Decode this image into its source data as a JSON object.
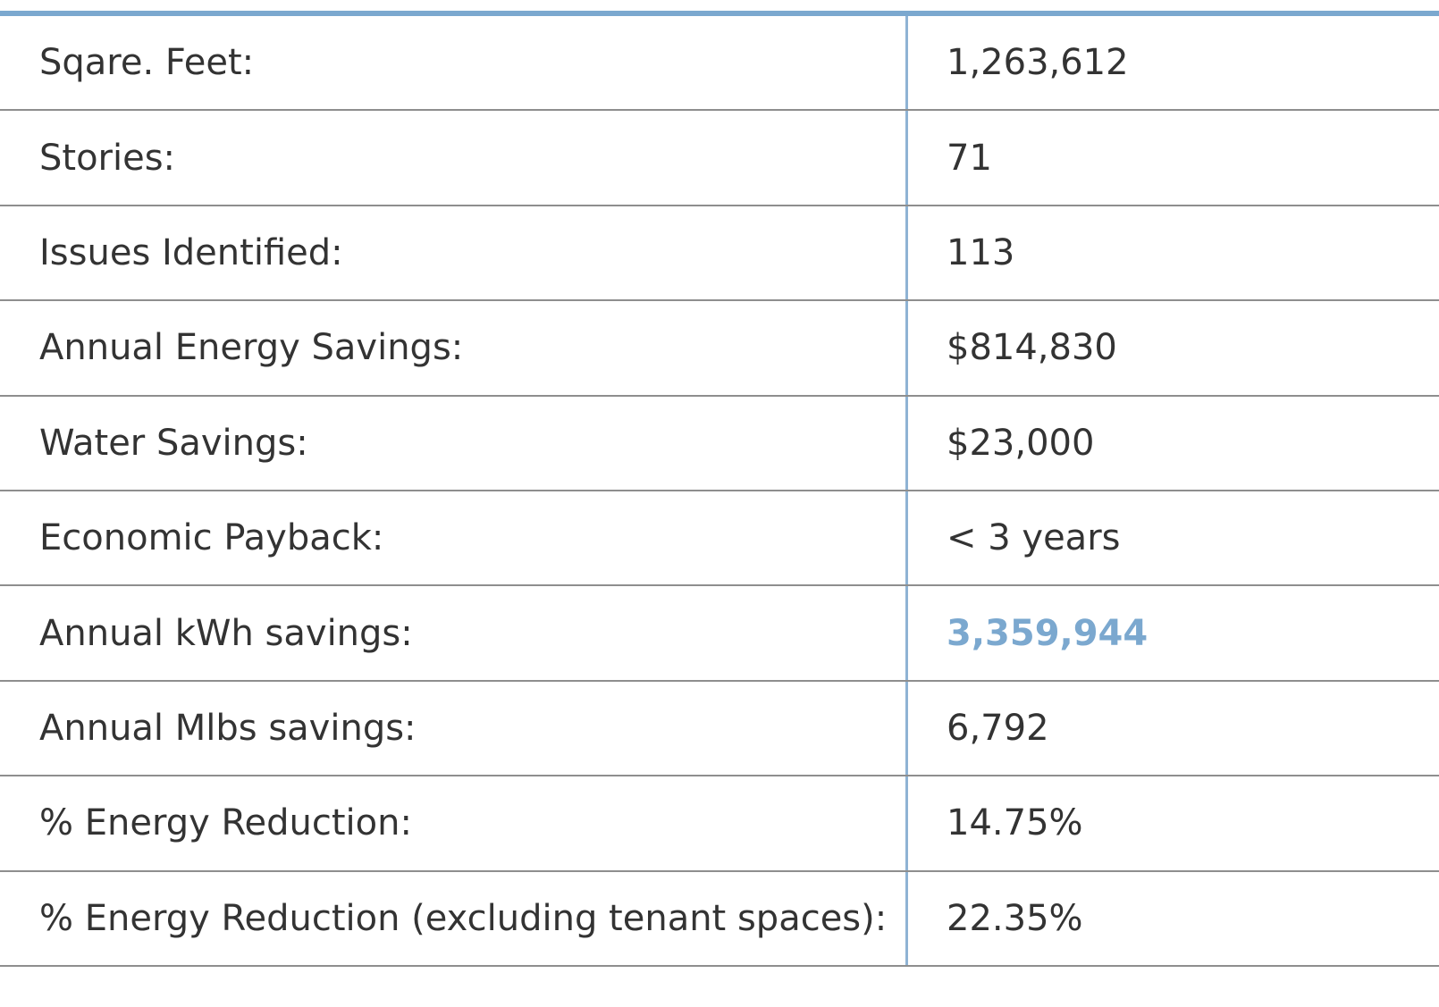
{
  "colors": {
    "accent": "#7ba8cf",
    "text": "#333333",
    "row_rule": "#8e8e8e"
  },
  "rows": [
    {
      "label": "Sqare. Feet:",
      "value": "1,263,612",
      "highlight": false
    },
    {
      "label": "Stories:",
      "value": "71",
      "highlight": false
    },
    {
      "label": "Issues Identified:",
      "value": "113",
      "highlight": false
    },
    {
      "label": "Annual Energy Savings:",
      "value": "$814,830",
      "highlight": false
    },
    {
      "label": "Water Savings:",
      "value": "$23,000",
      "highlight": false
    },
    {
      "label": "Economic Payback:",
      "value": "< 3 years",
      "highlight": false
    },
    {
      "label": "Annual kWh savings:",
      "value": "3,359,944",
      "highlight": true
    },
    {
      "label": "Annual Mlbs savings:",
      "value": "6,792",
      "highlight": false
    },
    {
      "label": "% Energy Reduction:",
      "value": "14.75%",
      "highlight": false
    },
    {
      "label": "% Energy Reduction (excluding tenant spaces):",
      "value": "22.35%",
      "highlight": false
    }
  ]
}
